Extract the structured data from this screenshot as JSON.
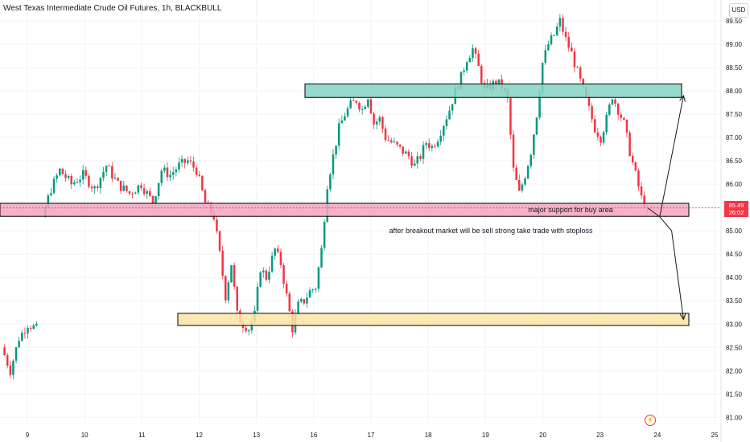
{
  "header": {
    "title": "West Texas Intermediate Crude Oil Futures, 1h, BLACKBULL",
    "currency": "USD"
  },
  "price_tag": {
    "value": "85.49",
    "countdown": "26:02"
  },
  "flash_icon": "lightning-icon",
  "annotations": {
    "support_label": "major support for buy area",
    "note": "after breakout market will be sell strong take trade with stoploss"
  },
  "colors": {
    "up": "#089981",
    "down": "#f23645",
    "resistance_zone": "#84d3c4",
    "support_zone": "#f5a3bf",
    "target_zone": "#fde3a4"
  },
  "chart_data": {
    "type": "candlestick",
    "title": "West Texas Intermediate Crude Oil Futures, 1h, BLACKBULL",
    "x_tick_labels": [
      "9",
      "10",
      "11",
      "12",
      "13",
      "16",
      "17",
      "18",
      "19",
      "20",
      "23",
      "24",
      "25"
    ],
    "y_tick_labels": [
      "81.00",
      "81.50",
      "82.00",
      "82.50",
      "83.00",
      "83.50",
      "84.00",
      "84.50",
      "85.00",
      "85.50",
      "86.00",
      "86.50",
      "87.00",
      "87.50",
      "88.00",
      "88.50",
      "89.00",
      "89.50"
    ],
    "ylim": [
      80.85,
      89.95
    ],
    "last_price": 85.49,
    "zones": [
      {
        "name": "resistance",
        "low": 87.86,
        "high": 88.15
      },
      {
        "name": "support",
        "low": 85.31,
        "high": 85.59
      },
      {
        "name": "target",
        "low": 82.97,
        "high": 83.23
      }
    ],
    "close_path": [
      [
        0,
        82.5
      ],
      [
        3,
        82.0
      ],
      [
        6,
        82.7
      ],
      [
        9,
        83.0
      ],
      [
        12,
        82.9
      ],
      [
        14,
        85.3
      ],
      [
        17,
        85.9
      ],
      [
        20,
        86.3
      ],
      [
        24,
        86.0
      ],
      [
        28,
        86.2
      ],
      [
        32,
        85.9
      ],
      [
        36,
        86.4
      ],
      [
        40,
        86.0
      ],
      [
        44,
        85.8
      ],
      [
        48,
        86.0
      ],
      [
        52,
        85.6
      ],
      [
        55,
        86.3
      ],
      [
        58,
        86.2
      ],
      [
        61,
        86.4
      ],
      [
        64,
        86.5
      ],
      [
        67,
        86.3
      ],
      [
        70,
        85.6
      ],
      [
        73,
        85.3
      ],
      [
        75,
        84.5
      ],
      [
        77,
        83.6
      ],
      [
        79,
        84.3
      ],
      [
        81,
        83.2
      ],
      [
        83,
        83.0
      ],
      [
        85,
        82.9
      ],
      [
        87,
        83.2
      ],
      [
        89,
        84.2
      ],
      [
        91,
        84.0
      ],
      [
        94,
        84.6
      ],
      [
        96,
        84.3
      ],
      [
        98,
        83.6
      ],
      [
        100,
        82.9
      ],
      [
        102,
        83.4
      ],
      [
        104,
        83.5
      ],
      [
        106,
        83.7
      ],
      [
        108,
        83.8
      ],
      [
        110,
        84.6
      ],
      [
        112,
        86.0
      ],
      [
        114,
        86.6
      ],
      [
        116,
        87.2
      ],
      [
        118,
        87.5
      ],
      [
        120,
        87.7
      ],
      [
        122,
        87.8
      ],
      [
        124,
        87.6
      ],
      [
        126,
        87.9
      ],
      [
        128,
        87.3
      ],
      [
        130,
        87.4
      ],
      [
        132,
        87.0
      ],
      [
        134,
        86.9
      ],
      [
        136,
        86.8
      ],
      [
        138,
        86.7
      ],
      [
        140,
        86.6
      ],
      [
        142,
        86.4
      ],
      [
        144,
        86.6
      ],
      [
        146,
        86.9
      ],
      [
        148,
        86.8
      ],
      [
        150,
        87.0
      ],
      [
        152,
        87.3
      ],
      [
        154,
        87.6
      ],
      [
        156,
        88.0
      ],
      [
        158,
        88.3
      ],
      [
        160,
        88.7
      ],
      [
        162,
        88.9
      ],
      [
        164,
        88.5
      ],
      [
        166,
        88.0
      ],
      [
        168,
        88.1
      ],
      [
        170,
        88.2
      ],
      [
        172,
        88.1
      ],
      [
        174,
        87.8
      ],
      [
        176,
        86.3
      ],
      [
        178,
        85.8
      ],
      [
        180,
        86.2
      ],
      [
        182,
        86.7
      ],
      [
        184,
        87.5
      ],
      [
        186,
        88.6
      ],
      [
        188,
        89.0
      ],
      [
        190,
        89.2
      ],
      [
        192,
        89.5
      ],
      [
        194,
        89.1
      ],
      [
        196,
        88.8
      ],
      [
        198,
        88.4
      ],
      [
        200,
        88.0
      ],
      [
        202,
        87.6
      ],
      [
        204,
        87.2
      ],
      [
        206,
        87.0
      ],
      [
        208,
        87.4
      ],
      [
        210,
        87.9
      ],
      [
        212,
        87.6
      ],
      [
        214,
        87.3
      ],
      [
        216,
        86.7
      ],
      [
        218,
        86.2
      ],
      [
        220,
        85.7
      ],
      [
        222,
        85.49
      ]
    ],
    "projection": [
      {
        "path": [
          [
            222,
            85.49
          ],
          [
            224,
            85.3
          ],
          [
            228,
            87.9
          ]
        ]
      },
      {
        "path": [
          [
            224,
            85.3
          ],
          [
            226,
            85.0
          ],
          [
            228,
            83.1
          ]
        ]
      }
    ]
  }
}
